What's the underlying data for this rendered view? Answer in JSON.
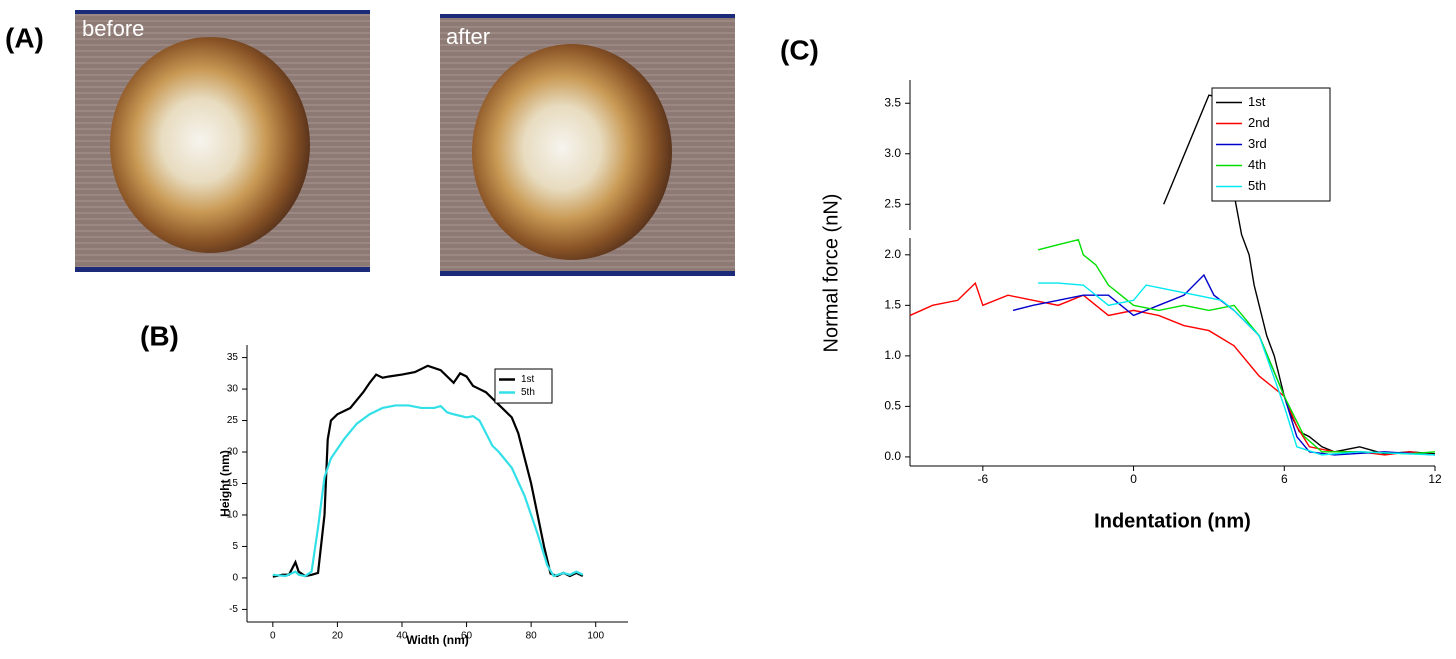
{
  "panel_labels": [
    "(A)",
    "(B)",
    "(C)"
  ],
  "images": [
    {
      "label": "before"
    },
    {
      "label": "after"
    }
  ],
  "chart_data": [
    {
      "type": "line",
      "xlabel": "Width (nm)",
      "ylabel": "Height (nm)",
      "xlim": [
        -8,
        110
      ],
      "ylim": [
        -7,
        37
      ],
      "xticks": [
        0,
        20,
        40,
        60,
        80,
        100
      ],
      "yticks": [
        -5,
        0,
        5,
        10,
        15,
        20,
        25,
        30,
        35
      ],
      "legend": "upper right",
      "series": [
        {
          "name": "1st",
          "color": "#000000",
          "x": [
            0,
            3,
            5,
            7,
            8,
            10,
            12,
            14,
            16,
            17,
            18,
            20,
            24,
            28,
            30,
            32,
            34,
            36,
            40,
            44,
            48,
            52,
            56,
            58,
            60,
            62,
            64,
            66,
            70,
            74,
            76,
            80,
            84,
            86,
            88,
            90,
            92,
            94,
            96
          ],
          "values": [
            0.2,
            0.5,
            0.5,
            2.5,
            1,
            0.3,
            0.5,
            0.8,
            10,
            22,
            25,
            26,
            27,
            29.5,
            31,
            32.3,
            31.8,
            32,
            32.3,
            32.7,
            33.7,
            33,
            31,
            32.5,
            32,
            30.5,
            30,
            29.5,
            27.5,
            25.5,
            23,
            15,
            5,
            0.7,
            0.3,
            0.8,
            0.3,
            0.8,
            0.3
          ]
        },
        {
          "name": "5th",
          "color": "#33e0e8",
          "x": [
            0,
            4,
            7,
            8,
            10,
            12,
            14,
            16,
            18,
            22,
            26,
            30,
            34,
            38,
            42,
            46,
            50,
            52,
            54,
            56,
            60,
            62,
            64,
            66,
            68,
            70,
            74,
            78,
            82,
            85,
            87,
            90,
            92,
            94,
            96
          ],
          "values": [
            0.5,
            0.3,
            1,
            0.5,
            0.3,
            1,
            8,
            16,
            19,
            22,
            24.5,
            26,
            27,
            27.4,
            27.4,
            27,
            27,
            27.3,
            26.3,
            26,
            25.5,
            25.7,
            25,
            23,
            21,
            20,
            17.5,
            13,
            7,
            2,
            0.3,
            0.8,
            0.5,
            1,
            0.5
          ]
        }
      ]
    },
    {
      "type": "line",
      "xlabel": "Indentation (nm)",
      "ylabel": "Normal force (nN)",
      "xlim": [
        -8.9,
        12
      ],
      "ylim": [
        -0.09,
        3.73
      ],
      "xticks": [
        -6,
        0,
        6,
        12
      ],
      "yticks": [
        {
          "value": 0,
          "label": "0.0"
        },
        0.5,
        {
          "value": 1,
          "label": "1.0"
        },
        1.5,
        {
          "value": 2,
          "label": "2.0"
        },
        2.5,
        {
          "value": 3,
          "label": "3.0"
        },
        3.5
      ],
      "legend": "upper right",
      "series": [
        {
          "name": "1st",
          "color": "#000000",
          "x": [
            1.2,
            3.0,
            3.2,
            3.4,
            3.7,
            4.0,
            4.3,
            4.6,
            4.8,
            5.0,
            5.3,
            5.6,
            5.8,
            6.0,
            6.3,
            6.6,
            7,
            7.5,
            8,
            9,
            10,
            11,
            12
          ],
          "values": [
            2.5,
            3.58,
            3.57,
            3.2,
            3.0,
            2.6,
            2.2,
            2.0,
            1.7,
            1.5,
            1.2,
            1.0,
            0.8,
            0.6,
            0.4,
            0.25,
            0.2,
            0.1,
            0.05,
            0.1,
            0.03,
            0.05,
            0.03
          ]
        },
        {
          "name": "2nd",
          "color": "#ff0000",
          "x": [
            -8.9,
            -8,
            -7,
            -6.3,
            -6,
            -5,
            -4,
            -3,
            -2,
            -1,
            0,
            1,
            2,
            3,
            4,
            5,
            6,
            6.5,
            7,
            8,
            9,
            10,
            11,
            12
          ],
          "values": [
            1.4,
            1.5,
            1.55,
            1.72,
            1.5,
            1.6,
            1.55,
            1.5,
            1.6,
            1.4,
            1.45,
            1.4,
            1.3,
            1.25,
            1.1,
            0.8,
            0.6,
            0.3,
            0.1,
            0.05,
            0.05,
            0.02,
            0.05,
            0.02
          ]
        },
        {
          "name": "3rd",
          "color": "#0000cc",
          "x": [
            -4.8,
            -4,
            -3,
            -2,
            -1,
            0,
            1,
            2,
            2.8,
            3.2,
            4,
            5,
            6,
            6.5,
            7,
            8,
            10,
            12
          ],
          "values": [
            1.45,
            1.5,
            1.55,
            1.6,
            1.6,
            1.4,
            1.5,
            1.6,
            1.8,
            1.6,
            1.45,
            1.2,
            0.6,
            0.2,
            0.05,
            0.02,
            0.05,
            0.02
          ]
        },
        {
          "name": "4th",
          "color": "#00e000",
          "x": [
            -3.8,
            -3,
            -2.2,
            -2,
            -1.5,
            -1,
            0,
            1,
            2,
            3,
            4,
            5,
            6,
            6.8,
            7.5,
            9,
            11,
            12
          ],
          "values": [
            2.05,
            2.1,
            2.15,
            2.0,
            1.9,
            1.7,
            1.5,
            1.45,
            1.5,
            1.45,
            1.5,
            1.2,
            0.6,
            0.2,
            0.05,
            0.05,
            0.03,
            0.05
          ]
        },
        {
          "name": "5th",
          "color": "#00e8f0",
          "x": [
            -3.8,
            -3,
            -2,
            -1,
            0,
            0.5,
            1.5,
            2.5,
            3.5,
            4,
            5,
            6,
            6.5,
            7.5,
            9,
            11,
            12
          ],
          "values": [
            1.72,
            1.72,
            1.7,
            1.5,
            1.55,
            1.7,
            1.65,
            1.6,
            1.55,
            1.45,
            1.2,
            0.5,
            0.1,
            0.02,
            0.05,
            0.03,
            0.02
          ]
        }
      ]
    }
  ]
}
